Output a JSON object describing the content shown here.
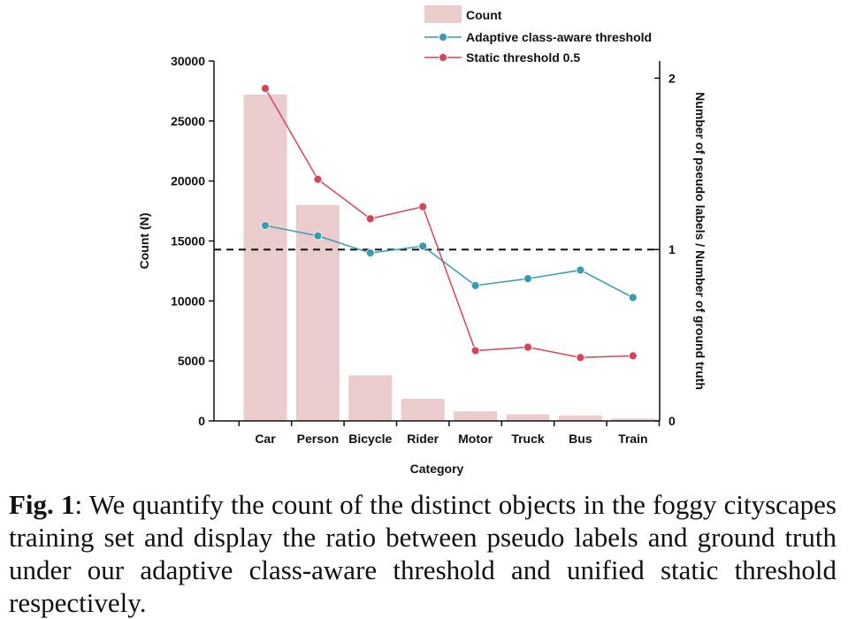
{
  "chart_data": {
    "type": "bar+line",
    "categories": [
      "Car",
      "Person",
      "Bicycle",
      "Rider",
      "Motor",
      "Truck",
      "Bus",
      "Train"
    ],
    "xlabel": "Category",
    "ylabel_left": "Count (N)",
    "ylabel_right": "Number of pseudo labels / Number of ground truth",
    "ylim_left": [
      0,
      30000
    ],
    "yticks_left": [
      0,
      5000,
      10000,
      15000,
      20000,
      25000,
      30000
    ],
    "ylim_right": [
      0,
      2.1
    ],
    "yticks_right": [
      0,
      1,
      2
    ],
    "reference_line": {
      "axis": "right",
      "value": 1,
      "style": "dashed"
    },
    "legend_placement": "top",
    "bars": {
      "name": "Count",
      "color": "#ebcccc",
      "values": [
        27200,
        18000,
        3800,
        1850,
        800,
        550,
        450,
        200
      ]
    },
    "series": [
      {
        "name": "Adaptive class-aware threshold",
        "color": "#3a9ab0",
        "values": [
          1.14,
          1.08,
          0.98,
          1.02,
          0.79,
          0.83,
          0.88,
          0.72
        ]
      },
      {
        "name": "Static threshold 0.5",
        "color": "#d84457",
        "values": [
          1.94,
          1.41,
          1.18,
          1.25,
          0.41,
          0.43,
          0.37,
          0.38
        ]
      }
    ]
  },
  "caption": {
    "label": "Fig. 1",
    "text": ": We quantify the count of the distinct objects in the foggy cityscapes training set and display the ratio between pseudo labels and ground truth under our adaptive class-aware threshold and unified static threshold respectively."
  }
}
